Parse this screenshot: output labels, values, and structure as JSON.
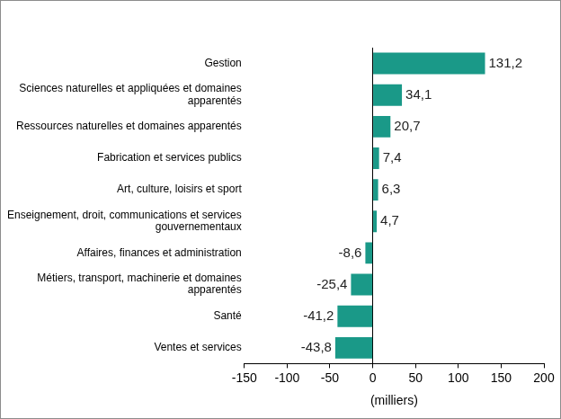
{
  "chart_data": {
    "type": "bar",
    "orientation": "horizontal",
    "categories": [
      "Gestion",
      "Sciences naturelles et appliquées et domaines apparentés",
      "Ressources naturelles et domaines apparentés",
      "Fabrication et services publics",
      "Art, culture, loisirs et sport",
      "Enseignement, droit, communications et services gouvernementaux",
      "Affaires, finances et administration",
      "Métiers, transport, machinerie et domaines apparentés",
      "Santé",
      "Ventes et services"
    ],
    "values": [
      131.2,
      34.1,
      20.7,
      7.4,
      6.3,
      4.7,
      -8.6,
      -25.4,
      -41.2,
      -43.8
    ],
    "value_labels": [
      "131,2",
      "34,1",
      "20,7",
      "7,4",
      "6,3",
      "4,7",
      "-8,6",
      "-25,4",
      "-41,2",
      "-43,8"
    ],
    "data_labels": true,
    "color": "#1a9988",
    "xlabel": "(milliers)",
    "xlim": [
      -150,
      200
    ],
    "xticks": [
      -150,
      -100,
      -50,
      0,
      50,
      100,
      150,
      200
    ],
    "grid": false
  }
}
